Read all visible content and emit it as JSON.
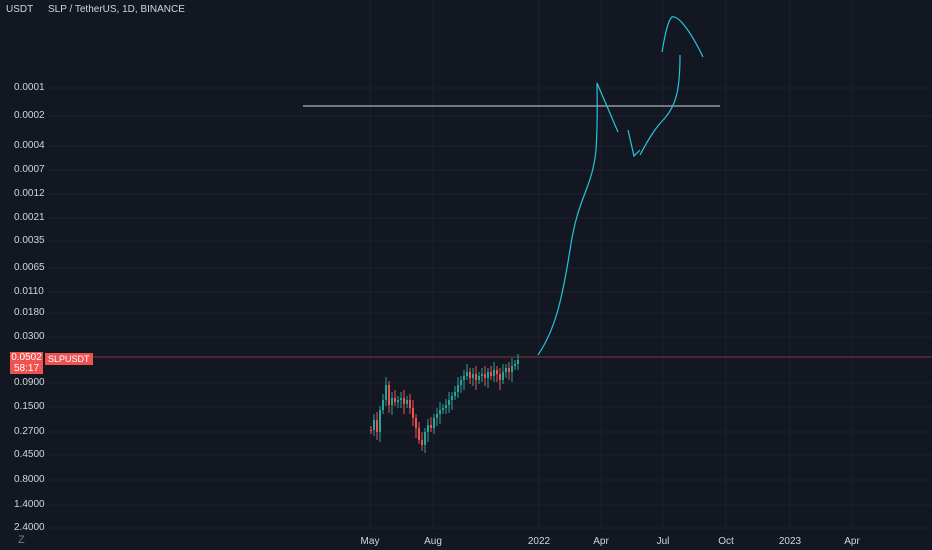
{
  "header": {
    "quote_label": "USDT",
    "title": "SLP / TetherUS, 1D, BINANCE"
  },
  "price_tag": {
    "price": "0.0502",
    "countdown": "58:17",
    "symbol": "SLPUSDT",
    "color": "#ef5350"
  },
  "colors": {
    "background": "#131722",
    "grid": "#1e222d",
    "drawing": "#26c6da",
    "horizontal_line": "#d1d4dc",
    "candle_up": "#26a69a",
    "candle_down": "#ef5350",
    "price_line": "#ef5350"
  },
  "icons": {
    "bottom_left": "z-icon"
  },
  "bottom_left_label": "Z",
  "chart_data": {
    "type": "candlestick",
    "title": "SLP / TetherUS, 1D, BINANCE",
    "y_scale": "log-inverted",
    "ylim": [
      0.0001,
      2.4
    ],
    "y_ticks": [
      "0.0001",
      "0.0002",
      "0.0004",
      "0.0007",
      "0.0012",
      "0.0021",
      "0.0035",
      "0.0065",
      "0.0110",
      "0.0180",
      "0.0300",
      "0.0502",
      "0.0900",
      "0.1500",
      "0.2700",
      "0.4500",
      "0.8000",
      "1.4000",
      "2.4000"
    ],
    "x_ticks": [
      "May",
      "Aug",
      "2022",
      "Apr",
      "Jul",
      "Oct",
      "2023",
      "Apr"
    ],
    "last_price": 0.0502,
    "horizontal_level": 0.000178,
    "grid": true
  }
}
